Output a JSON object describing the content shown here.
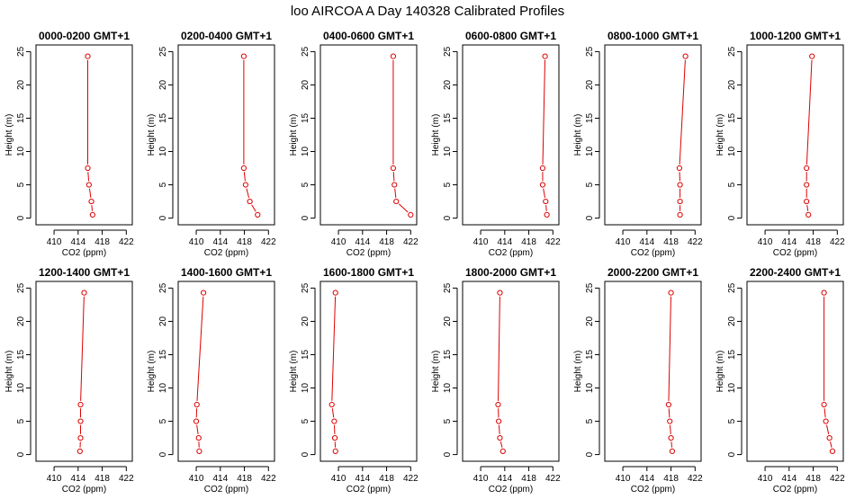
{
  "figure_title": "loo AIRCOA A  Day 140328  Calibrated Profiles",
  "colors": {
    "series": "#dd0000",
    "axis": "#000000"
  },
  "chart_data": [
    {
      "type": "line",
      "title": "0000-0200 GMT+1",
      "xlabel": "CO2 (ppm)",
      "ylabel": "Height (m)",
      "xlim": [
        407,
        423
      ],
      "ylim": [
        0,
        25
      ],
      "xticks": [
        410,
        414,
        418,
        422
      ],
      "yticks": [
        0,
        5,
        10,
        15,
        20,
        25
      ],
      "grid": false,
      "points": [
        {
          "x": 416.4,
          "y": 0.5
        },
        {
          "x": 416.2,
          "y": 2.5
        },
        {
          "x": 415.8,
          "y": 5
        },
        {
          "x": 415.6,
          "y": 7.5
        },
        {
          "x": 415.6,
          "y": 24.3
        }
      ]
    },
    {
      "type": "line",
      "title": "0200-0400 GMT+1",
      "xlabel": "CO2 (ppm)",
      "ylabel": "Height (m)",
      "xlim": [
        407,
        423
      ],
      "ylim": [
        0,
        25
      ],
      "xticks": [
        410,
        414,
        418,
        422
      ],
      "yticks": [
        0,
        5,
        10,
        15,
        20,
        25
      ],
      "grid": false,
      "points": [
        {
          "x": 420.2,
          "y": 0.5
        },
        {
          "x": 418.9,
          "y": 2.5
        },
        {
          "x": 418.2,
          "y": 5
        },
        {
          "x": 417.9,
          "y": 7.5
        },
        {
          "x": 417.9,
          "y": 24.3
        }
      ]
    },
    {
      "type": "line",
      "title": "0400-0600 GMT+1",
      "xlabel": "CO2 (ppm)",
      "ylabel": "Height (m)",
      "xlim": [
        407,
        423
      ],
      "ylim": [
        0,
        25
      ],
      "xticks": [
        410,
        414,
        418,
        422
      ],
      "yticks": [
        0,
        5,
        10,
        15,
        20,
        25
      ],
      "grid": false,
      "points": [
        {
          "x": 422.0,
          "y": 0.5
        },
        {
          "x": 419.6,
          "y": 2.5
        },
        {
          "x": 419.3,
          "y": 5
        },
        {
          "x": 419.1,
          "y": 7.5
        },
        {
          "x": 419.1,
          "y": 24.3
        }
      ]
    },
    {
      "type": "line",
      "title": "0600-0800 GMT+1",
      "xlabel": "CO2 (ppm)",
      "ylabel": "Height (m)",
      "xlim": [
        407,
        423
      ],
      "ylim": [
        0,
        25
      ],
      "xticks": [
        410,
        414,
        418,
        422
      ],
      "yticks": [
        0,
        5,
        10,
        15,
        20,
        25
      ],
      "grid": false,
      "points": [
        {
          "x": 421.0,
          "y": 0.5
        },
        {
          "x": 420.8,
          "y": 2.5
        },
        {
          "x": 420.3,
          "y": 5
        },
        {
          "x": 420.3,
          "y": 7.5
        },
        {
          "x": 420.7,
          "y": 24.3
        }
      ]
    },
    {
      "type": "line",
      "title": "0800-1000 GMT+1",
      "xlabel": "CO2 (ppm)",
      "ylabel": "Height (m)",
      "xlim": [
        407,
        423
      ],
      "ylim": [
        0,
        25
      ],
      "xticks": [
        410,
        414,
        418,
        422
      ],
      "yticks": [
        0,
        5,
        10,
        15,
        20,
        25
      ],
      "grid": false,
      "points": [
        {
          "x": 419.5,
          "y": 0.5
        },
        {
          "x": 419.5,
          "y": 2.5
        },
        {
          "x": 419.5,
          "y": 5
        },
        {
          "x": 419.4,
          "y": 7.5
        },
        {
          "x": 420.4,
          "y": 24.3
        }
      ]
    },
    {
      "type": "line",
      "title": "1000-1200 GMT+1",
      "xlabel": "CO2 (ppm)",
      "ylabel": "Height (m)",
      "xlim": [
        407,
        423
      ],
      "ylim": [
        0,
        25
      ],
      "xticks": [
        410,
        414,
        418,
        422
      ],
      "yticks": [
        0,
        5,
        10,
        15,
        20,
        25
      ],
      "grid": false,
      "points": [
        {
          "x": 417.2,
          "y": 0.5
        },
        {
          "x": 416.9,
          "y": 2.5
        },
        {
          "x": 416.9,
          "y": 5
        },
        {
          "x": 416.9,
          "y": 7.5
        },
        {
          "x": 417.8,
          "y": 24.3
        }
      ]
    },
    {
      "type": "line",
      "title": "1200-1400 GMT+1",
      "xlabel": "CO2 (ppm)",
      "ylabel": "Height (m)",
      "xlim": [
        407,
        423
      ],
      "ylim": [
        0,
        25
      ],
      "xticks": [
        410,
        414,
        418,
        422
      ],
      "yticks": [
        0,
        5,
        10,
        15,
        20,
        25
      ],
      "grid": false,
      "points": [
        {
          "x": 414.3,
          "y": 0.5
        },
        {
          "x": 414.4,
          "y": 2.5
        },
        {
          "x": 414.4,
          "y": 5
        },
        {
          "x": 414.4,
          "y": 7.5
        },
        {
          "x": 415.0,
          "y": 24.3
        }
      ]
    },
    {
      "type": "line",
      "title": "1400-1600 GMT+1",
      "xlabel": "CO2 (ppm)",
      "ylabel": "Height (m)",
      "xlim": [
        407,
        423
      ],
      "ylim": [
        0,
        25
      ],
      "xticks": [
        410,
        414,
        418,
        422
      ],
      "yticks": [
        0,
        5,
        10,
        15,
        20,
        25
      ],
      "grid": false,
      "points": [
        {
          "x": 410.5,
          "y": 0.5
        },
        {
          "x": 410.4,
          "y": 2.5
        },
        {
          "x": 410.0,
          "y": 5
        },
        {
          "x": 410.1,
          "y": 7.5
        },
        {
          "x": 411.2,
          "y": 24.3
        }
      ]
    },
    {
      "type": "line",
      "title": "1600-1800 GMT+1",
      "xlabel": "CO2 (ppm)",
      "ylabel": "Height (m)",
      "xlim": [
        407,
        423
      ],
      "ylim": [
        0,
        25
      ],
      "xticks": [
        410,
        414,
        418,
        422
      ],
      "yticks": [
        0,
        5,
        10,
        15,
        20,
        25
      ],
      "grid": false,
      "points": [
        {
          "x": 409.5,
          "y": 0.5
        },
        {
          "x": 409.4,
          "y": 2.5
        },
        {
          "x": 409.3,
          "y": 5
        },
        {
          "x": 408.9,
          "y": 7.5
        },
        {
          "x": 409.5,
          "y": 24.3
        }
      ]
    },
    {
      "type": "line",
      "title": "1800-2000 GMT+1",
      "xlabel": "CO2 (ppm)",
      "ylabel": "Height (m)",
      "xlim": [
        407,
        423
      ],
      "ylim": [
        0,
        25
      ],
      "xticks": [
        410,
        414,
        418,
        422
      ],
      "yticks": [
        0,
        5,
        10,
        15,
        20,
        25
      ],
      "grid": false,
      "points": [
        {
          "x": 413.7,
          "y": 0.5
        },
        {
          "x": 413.2,
          "y": 2.5
        },
        {
          "x": 413.0,
          "y": 5
        },
        {
          "x": 412.9,
          "y": 7.5
        },
        {
          "x": 413.2,
          "y": 24.3
        }
      ]
    },
    {
      "type": "line",
      "title": "2000-2200 GMT+1",
      "xlabel": "CO2 (ppm)",
      "ylabel": "Height (m)",
      "xlim": [
        407,
        423
      ],
      "ylim": [
        0,
        25
      ],
      "xticks": [
        410,
        414,
        418,
        422
      ],
      "yticks": [
        0,
        5,
        10,
        15,
        20,
        25
      ],
      "grid": false,
      "points": [
        {
          "x": 418.2,
          "y": 0.5
        },
        {
          "x": 418.0,
          "y": 2.5
        },
        {
          "x": 417.8,
          "y": 5
        },
        {
          "x": 417.6,
          "y": 7.5
        },
        {
          "x": 418.0,
          "y": 24.3
        }
      ]
    },
    {
      "type": "line",
      "title": "2200-2400 GMT+1",
      "xlabel": "CO2 (ppm)",
      "ylabel": "Height (m)",
      "xlim": [
        407,
        423
      ],
      "ylim": [
        0,
        25
      ],
      "xticks": [
        410,
        414,
        418,
        422
      ],
      "yticks": [
        0,
        5,
        10,
        15,
        20,
        25
      ],
      "grid": false,
      "points": [
        {
          "x": 421.2,
          "y": 0.5
        },
        {
          "x": 420.7,
          "y": 2.5
        },
        {
          "x": 420.1,
          "y": 5
        },
        {
          "x": 419.8,
          "y": 7.5
        },
        {
          "x": 419.8,
          "y": 24.3
        }
      ]
    }
  ]
}
